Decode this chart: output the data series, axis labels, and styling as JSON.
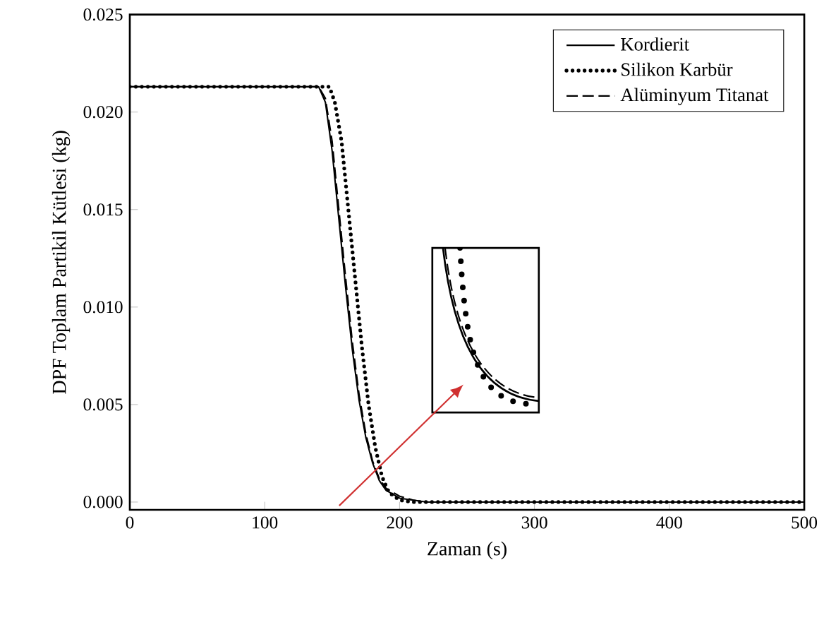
{
  "chart_data": {
    "type": "line",
    "xlabel": "Zaman (s)",
    "ylabel": "DPF Toplam Partikil Kütlesi (kg)",
    "xlim": [
      0,
      500
    ],
    "ylim": [
      -0.0004,
      0.025
    ],
    "xticks": [
      0,
      100,
      200,
      300,
      400,
      500
    ],
    "yticks": [
      {
        "value": 0,
        "label": "0.000"
      },
      {
        "value": 0.005,
        "label": "0.005"
      },
      {
        "value": 0.01,
        "label": "0.010"
      },
      {
        "value": 0.015,
        "label": "0.015"
      },
      {
        "value": 0.02,
        "label": "0.020"
      },
      {
        "value": 0.025,
        "label": "0.025"
      }
    ],
    "grid": false,
    "legend": "top right",
    "series": [
      {
        "name": "Kordierit",
        "color": "#000000",
        "line_style": "solid",
        "x": [
          0,
          140,
          145,
          150,
          155,
          160,
          165,
          170,
          175,
          180,
          185,
          190,
          200,
          210,
          220,
          500
        ],
        "values": [
          0.0213,
          0.0213,
          0.0205,
          0.018,
          0.0145,
          0.011,
          0.0078,
          0.0052,
          0.0033,
          0.002,
          0.0011,
          0.0006,
          0.0002,
          0.0001,
          0,
          0
        ]
      },
      {
        "name": "Silikon Karbür",
        "color": "#000000",
        "line_style": "dotted",
        "x": [
          0,
          148,
          152,
          157,
          162,
          167,
          172,
          177,
          182,
          187,
          192,
          200,
          210,
          500
        ],
        "values": [
          0.0213,
          0.0213,
          0.0205,
          0.0185,
          0.015,
          0.0115,
          0.008,
          0.005,
          0.0028,
          0.0013,
          0.0005,
          0.0001,
          0,
          0
        ]
      },
      {
        "name": "Alüminyum Titanat",
        "color": "#000000",
        "line_style": "dashed",
        "x": [
          0,
          140,
          145,
          150,
          155,
          160,
          165,
          170,
          175,
          180,
          185,
          190,
          200,
          210,
          220,
          500
        ],
        "values": [
          0.0213,
          0.0213,
          0.0207,
          0.0185,
          0.015,
          0.0115,
          0.0082,
          0.0055,
          0.0035,
          0.0021,
          0.0012,
          0.0007,
          0.0003,
          0.0001,
          0,
          0
        ]
      }
    ]
  }
}
